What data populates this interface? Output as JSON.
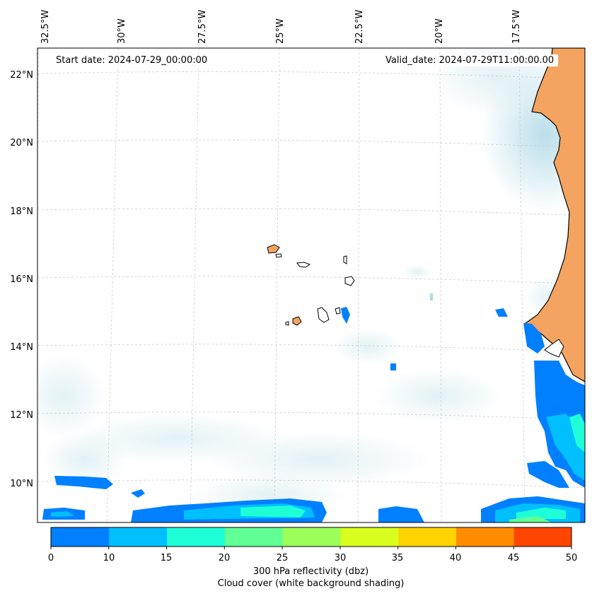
{
  "map": {
    "start_date": "Start date: 2024-07-29_00:00:00",
    "valid_date": "Valid_date: 2024-07-29T11:00:00.00",
    "longitude_labels": [
      "32.5°W",
      "30°W",
      "27.5°W",
      "25°W",
      "22.5°W",
      "20°W",
      "17.5°W"
    ],
    "latitude_labels": [
      "22°N",
      "20°N",
      "18°N",
      "16°N",
      "14°N",
      "12°N",
      "10°N"
    ],
    "gridlines": "dashed",
    "land_color": "#f4a460",
    "cloud_color": "#add8e6"
  },
  "colorbar": {
    "ticks": [
      "0",
      "10",
      "15",
      "20",
      "25",
      "30",
      "35",
      "40",
      "45",
      "50"
    ],
    "colors": [
      "#007fff",
      "#00bfff",
      "#1effd8",
      "#61ff95",
      "#9dff59",
      "#d8ff1e",
      "#ffd400",
      "#ff8c00",
      "#ff4500"
    ],
    "label": "300 hPa reflectivity (dbz)",
    "sublabel": "Cloud cover (white background shading)"
  }
}
